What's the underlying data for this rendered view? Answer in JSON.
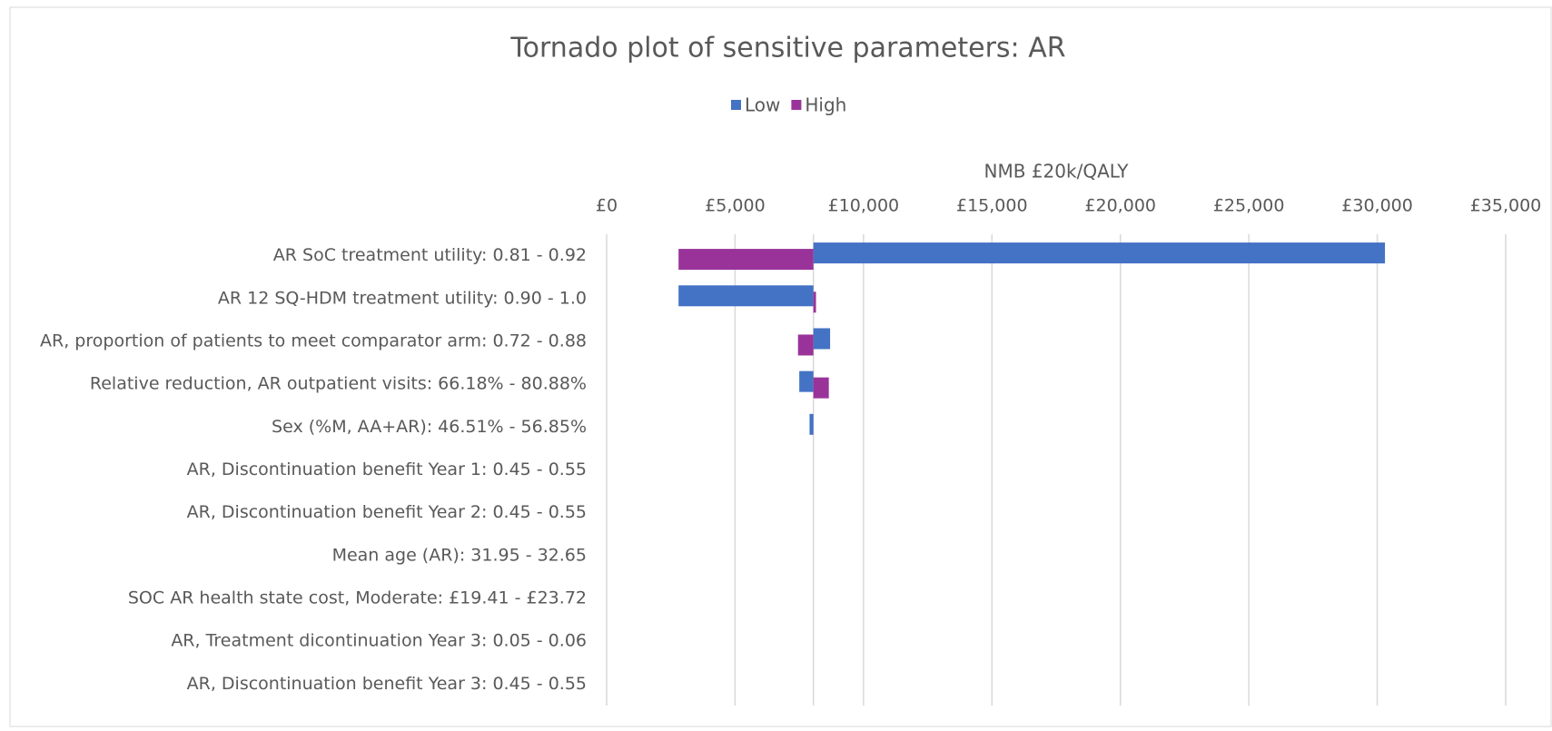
{
  "chart_data": {
    "type": "tornado",
    "title": "Tornado plot of sensitive parameters: AR",
    "x_label": "NMB £20k/QALY",
    "categories": [
      "AR SoC treatment utility: 0.81 - 0.92",
      "AR 12 SQ-HDM treatment utility: 0.90 - 1.0",
      "AR, proportion of patients to meet comparator arm: 0.72 - 0.88",
      "Relative reduction, AR outpatient visits: 66.18% - 80.88%",
      "Sex (%M, AA+AR): 46.51% - 56.85%",
      "AR, Discontinuation benefit Year 1: 0.45 - 0.55",
      "AR, Discontinuation benefit Year 2: 0.45 - 0.55",
      "Mean age (AR): 31.95 - 32.65",
      "SOC AR health state cost, Moderate: £19.41 - £23.72",
      "AR, Treatment dicontinuation Year 3: 0.05 - 0.06",
      "AR, Discontinuation benefit Year 3: 0.45 - 0.55"
    ],
    "base": 8050,
    "series": [
      {
        "name": "Low",
        "color": "#4472c4",
        "values": [
          30300,
          2800,
          8700,
          7500,
          7900,
          8050,
          8050,
          8050,
          8050,
          8050,
          8050
        ]
      },
      {
        "name": "High",
        "color": "#993399",
        "values": [
          2800,
          8150,
          7450,
          8650,
          8050,
          8050,
          8050,
          8050,
          8050,
          8050,
          8050
        ]
      }
    ],
    "xlim": [
      0,
      35000
    ],
    "xticks": [
      {
        "value": 0,
        "label": "£0"
      },
      {
        "value": 5000,
        "label": "£5,000"
      },
      {
        "value": 10000,
        "label": "£10,000"
      },
      {
        "value": 15000,
        "label": "£15,000"
      },
      {
        "value": 20000,
        "label": "£20,000"
      },
      {
        "value": 25000,
        "label": "£25,000"
      },
      {
        "value": 30000,
        "label": "£30,000"
      },
      {
        "value": 35000,
        "label": "£35,000"
      }
    ],
    "grid": true
  }
}
